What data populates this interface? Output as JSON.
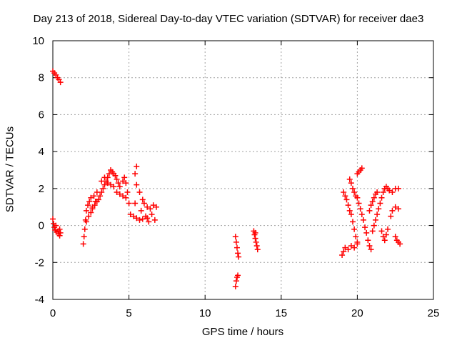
{
  "chart_data": {
    "type": "scatter",
    "title": "Day 213 of 2018, Sidereal Day-to-day VTEC variation (SDTVAR) for receiver dae3",
    "xlabel": "GPS time / hours",
    "ylabel": "SDTVAR / TECUs",
    "xlim": [
      0,
      25
    ],
    "ylim": [
      -4,
      10
    ],
    "xticks": [
      0,
      5,
      10,
      15,
      20,
      25
    ],
    "yticks": [
      -4,
      -2,
      0,
      2,
      4,
      6,
      8,
      10
    ],
    "grid": true,
    "marker": "plus",
    "colors": {
      "series": "#ff0000",
      "grid": "#a0a0a0",
      "axis": "#000000"
    },
    "series": [
      {
        "points": [
          [
            0.0,
            8.35
          ],
          [
            0.1,
            8.25
          ],
          [
            0.2,
            8.15
          ],
          [
            0.3,
            8.0
          ],
          [
            0.4,
            7.9
          ],
          [
            0.5,
            7.75
          ],
          [
            0.0,
            0.35
          ],
          [
            0.05,
            0.1
          ],
          [
            0.1,
            -0.1
          ],
          [
            0.15,
            -0.25
          ],
          [
            0.25,
            -0.35
          ],
          [
            0.35,
            -0.45
          ],
          [
            0.45,
            -0.55
          ],
          [
            0.2,
            0.0
          ],
          [
            0.35,
            -0.3
          ],
          [
            0.45,
            -0.2
          ],
          [
            0.5,
            -0.4
          ],
          [
            2.0,
            -1.0
          ],
          [
            2.05,
            -0.6
          ],
          [
            2.1,
            -0.2
          ],
          [
            2.15,
            0.3
          ],
          [
            2.2,
            0.8
          ],
          [
            2.3,
            1.1
          ],
          [
            2.4,
            1.3
          ],
          [
            2.5,
            1.5
          ],
          [
            2.6,
            1.0
          ],
          [
            2.7,
            1.6
          ],
          [
            2.8,
            1.3
          ],
          [
            2.9,
            1.8
          ],
          [
            2.2,
            0.2
          ],
          [
            2.35,
            0.5
          ],
          [
            2.5,
            0.7
          ],
          [
            2.6,
            0.9
          ],
          [
            2.75,
            1.1
          ],
          [
            2.9,
            1.3
          ],
          [
            3.0,
            1.4
          ],
          [
            3.1,
            1.6
          ],
          [
            3.2,
            1.8
          ],
          [
            3.3,
            2.0
          ],
          [
            3.4,
            2.2
          ],
          [
            3.5,
            2.4
          ],
          [
            3.6,
            2.6
          ],
          [
            3.7,
            2.8
          ],
          [
            3.8,
            3.0
          ],
          [
            3.9,
            2.9
          ],
          [
            4.0,
            2.8
          ],
          [
            4.1,
            2.7
          ],
          [
            4.2,
            2.5
          ],
          [
            4.3,
            2.3
          ],
          [
            4.4,
            2.1
          ],
          [
            3.2,
            2.4
          ],
          [
            3.4,
            2.6
          ],
          [
            3.6,
            2.3
          ],
          [
            3.8,
            2.2
          ],
          [
            4.0,
            2.1
          ],
          [
            4.2,
            1.8
          ],
          [
            4.4,
            1.7
          ],
          [
            4.6,
            1.6
          ],
          [
            4.8,
            1.5
          ],
          [
            4.6,
            2.4
          ],
          [
            4.7,
            2.6
          ],
          [
            4.8,
            2.3
          ],
          [
            4.9,
            1.8
          ],
          [
            5.0,
            1.2
          ],
          [
            5.1,
            0.6
          ],
          [
            5.3,
            0.5
          ],
          [
            5.5,
            0.4
          ],
          [
            5.7,
            0.3
          ],
          [
            5.9,
            0.35
          ],
          [
            6.1,
            0.5
          ],
          [
            6.3,
            0.2
          ],
          [
            5.4,
            2.8
          ],
          [
            5.5,
            3.2
          ],
          [
            5.5,
            2.2
          ],
          [
            5.7,
            1.8
          ],
          [
            5.9,
            1.4
          ],
          [
            6.0,
            1.2
          ],
          [
            6.2,
            1.0
          ],
          [
            6.4,
            0.9
          ],
          [
            6.6,
            1.1
          ],
          [
            6.8,
            1.0
          ],
          [
            5.4,
            1.2
          ],
          [
            5.8,
            0.8
          ],
          [
            6.2,
            0.4
          ],
          [
            6.5,
            0.6
          ],
          [
            6.7,
            0.3
          ],
          [
            12.0,
            -3.3
          ],
          [
            12.05,
            -3.0
          ],
          [
            12.1,
            -2.8
          ],
          [
            12.15,
            -2.7
          ],
          [
            12.0,
            -0.6
          ],
          [
            12.05,
            -0.9
          ],
          [
            12.1,
            -1.2
          ],
          [
            12.15,
            -1.5
          ],
          [
            12.2,
            -1.7
          ],
          [
            13.2,
            -0.3
          ],
          [
            13.25,
            -0.5
          ],
          [
            13.3,
            -0.7
          ],
          [
            13.35,
            -0.9
          ],
          [
            13.4,
            -1.1
          ],
          [
            13.45,
            -1.3
          ],
          [
            13.3,
            -0.4
          ],
          [
            19.0,
            -1.6
          ],
          [
            19.1,
            -1.4
          ],
          [
            19.2,
            -1.2
          ],
          [
            19.4,
            -1.3
          ],
          [
            19.6,
            -1.1
          ],
          [
            19.8,
            -1.2
          ],
          [
            20.0,
            -1.0
          ],
          [
            19.1,
            1.8
          ],
          [
            19.2,
            1.6
          ],
          [
            19.3,
            1.4
          ],
          [
            19.4,
            1.1
          ],
          [
            19.5,
            0.8
          ],
          [
            19.6,
            0.6
          ],
          [
            19.7,
            0.2
          ],
          [
            19.8,
            -0.2
          ],
          [
            19.9,
            -0.6
          ],
          [
            20.0,
            -0.9
          ],
          [
            19.5,
            2.5
          ],
          [
            19.6,
            2.3
          ],
          [
            19.7,
            2.0
          ],
          [
            19.8,
            1.8
          ],
          [
            19.9,
            1.6
          ],
          [
            20.0,
            2.8
          ],
          [
            20.1,
            2.9
          ],
          [
            20.2,
            3.0
          ],
          [
            20.3,
            3.1
          ],
          [
            20.0,
            1.5
          ],
          [
            20.1,
            1.2
          ],
          [
            20.2,
            0.9
          ],
          [
            20.3,
            0.6
          ],
          [
            20.4,
            0.3
          ],
          [
            20.5,
            -0.1
          ],
          [
            20.6,
            -0.4
          ],
          [
            20.7,
            -0.8
          ],
          [
            20.8,
            -1.1
          ],
          [
            20.9,
            -1.3
          ],
          [
            20.8,
            0.8
          ],
          [
            20.9,
            1.1
          ],
          [
            21.0,
            1.3
          ],
          [
            21.1,
            1.5
          ],
          [
            21.2,
            1.7
          ],
          [
            21.3,
            1.8
          ],
          [
            21.0,
            -0.3
          ],
          [
            21.1,
            0.0
          ],
          [
            21.2,
            0.3
          ],
          [
            21.3,
            0.6
          ],
          [
            21.4,
            0.9
          ],
          [
            21.5,
            1.2
          ],
          [
            21.6,
            1.5
          ],
          [
            21.7,
            1.8
          ],
          [
            21.8,
            2.0
          ],
          [
            21.9,
            2.1
          ],
          [
            22.0,
            2.0
          ],
          [
            22.1,
            1.9
          ],
          [
            22.3,
            1.8
          ],
          [
            22.5,
            2.0
          ],
          [
            22.7,
            2.0
          ],
          [
            21.6,
            -0.3
          ],
          [
            21.7,
            -0.6
          ],
          [
            21.8,
            -0.8
          ],
          [
            21.9,
            -0.5
          ],
          [
            22.0,
            -0.2
          ],
          [
            22.2,
            0.5
          ],
          [
            22.3,
            0.8
          ],
          [
            22.5,
            1.0
          ],
          [
            22.7,
            0.9
          ],
          [
            22.5,
            -0.6
          ],
          [
            22.6,
            -0.8
          ],
          [
            22.7,
            -0.9
          ],
          [
            22.8,
            -1.0
          ]
        ]
      }
    ]
  }
}
